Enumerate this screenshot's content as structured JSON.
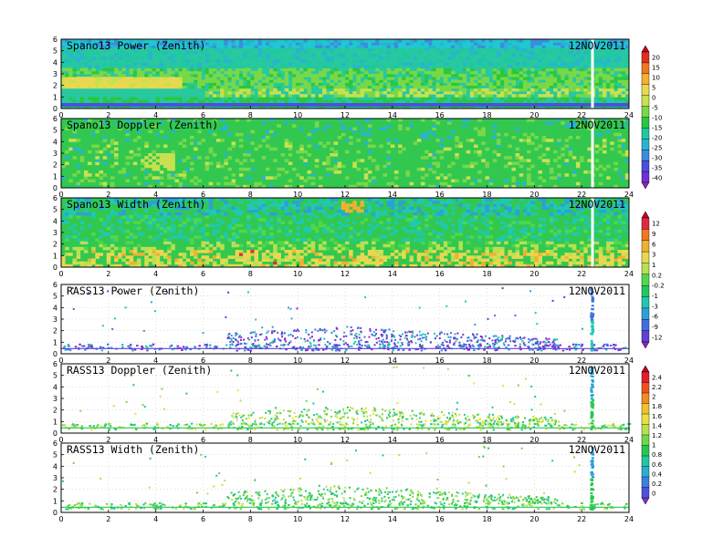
{
  "date_label": "12NOV2011",
  "x_ticks": [
    "0",
    "2",
    "4",
    "6",
    "8",
    "10",
    "12",
    "14",
    "16",
    "18",
    "20",
    "22",
    "24"
  ],
  "y_ticks": [
    "0",
    "1",
    "2",
    "3",
    "4",
    "5",
    "6"
  ],
  "colorbar_power": {
    "labels": [
      "20",
      "15",
      "10",
      "5",
      "0",
      "-5",
      "-10",
      "-15",
      "-20",
      "-25",
      "-30",
      "-35",
      "-40"
    ],
    "colors": [
      "#c8002a",
      "#e0301e",
      "#f07820",
      "#f5b030",
      "#e8d850",
      "#c8e050",
      "#78d848",
      "#28c840",
      "#20c8a0",
      "#28b4d0",
      "#3c8ce0",
      "#4c50e0",
      "#7030d8",
      "#9620c8"
    ]
  },
  "colorbar_width": {
    "labels": [
      "12",
      "9",
      "6",
      "3",
      "1",
      "0.2",
      "-0.2",
      "-1",
      "-3",
      "-6",
      "-9",
      "-12"
    ],
    "colors": [
      "#c8002a",
      "#e02a40",
      "#f07820",
      "#f0b030",
      "#e8d850",
      "#b8e050",
      "#50d848",
      "#20c860",
      "#20c8b0",
      "#2ca0d8",
      "#4070e0",
      "#6040d8",
      "#9020c8"
    ]
  },
  "colorbar_doppler": {
    "labels": [
      "2.4",
      "2.2",
      "2",
      "1.8",
      "1.6",
      "1.4",
      "1.2",
      "1",
      "0.8",
      "0.6",
      "0.4",
      "0.2",
      "0"
    ],
    "colors": [
      "#c8002a",
      "#e0202a",
      "#f05020",
      "#f08c20",
      "#f0c030",
      "#e8e040",
      "#b8e050",
      "#70d848",
      "#28c850",
      "#20c8a0",
      "#28b0d0",
      "#3c80e0",
      "#5050e0",
      "#8030d0"
    ]
  },
  "chart_data": [
    {
      "type": "heatmap",
      "title": "Spano13 Power (Zenith)",
      "date": "12NOV2011",
      "xlim": [
        0,
        24
      ],
      "ylim": [
        0,
        6
      ],
      "colorbar": "power"
    },
    {
      "type": "heatmap",
      "title": "Spano13 Doppler (Zenith)",
      "date": "12NOV2011",
      "xlim": [
        0,
        24
      ],
      "ylim": [
        0,
        6
      ],
      "colorbar": "power"
    },
    {
      "type": "heatmap",
      "title": "Spano13 Width (Zenith)",
      "date": "12NOV2011",
      "xlim": [
        0,
        24
      ],
      "ylim": [
        0,
        6
      ],
      "colorbar": "width"
    },
    {
      "type": "scatter",
      "title": "RASS13 Power (Zenith)",
      "date": "12NOV2011",
      "xlim": [
        0,
        24
      ],
      "ylim": [
        0,
        6
      ],
      "colorbar": "width"
    },
    {
      "type": "scatter",
      "title": "RASS13 Doppler (Zenith)",
      "date": "12NOV2011",
      "xlim": [
        0,
        24
      ],
      "ylim": [
        0,
        6
      ],
      "colorbar": "doppler"
    },
    {
      "type": "scatter",
      "title": "RASS13 Width (Zenith)",
      "date": "12NOV2011",
      "xlim": [
        0,
        24
      ],
      "ylim": [
        0,
        6
      ],
      "colorbar": "doppler"
    }
  ]
}
